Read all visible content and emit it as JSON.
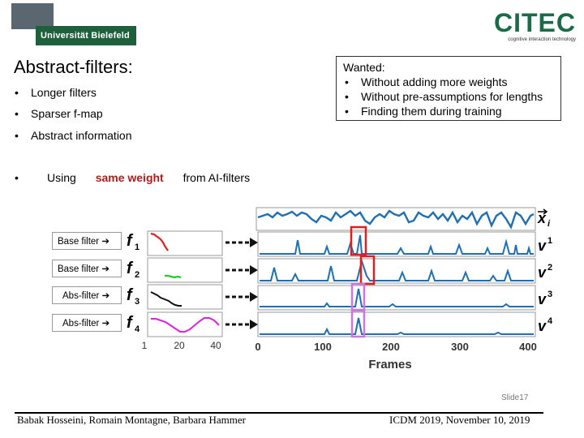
{
  "header": {
    "university_logo_text": "Universität Bielefeld",
    "citec_logo": "CITEC",
    "citec_subtitle": "cognitive interaction technology"
  },
  "slide": {
    "title": "Abstract-filters:",
    "bullets": [
      "Longer filters",
      "Sparser f-map",
      "Abstract information"
    ],
    "weight_bullet": {
      "prefix": "Using ",
      "highlight": "same weight",
      "suffix": " from AI-filters"
    },
    "wanted": {
      "heading": "Wanted:",
      "items": [
        "Without adding more weights",
        "Without pre-assumptions for lengths",
        "Finding them during training"
      ]
    }
  },
  "figure": {
    "filter_labels": [
      "Base filter",
      "Base filter",
      "Abs-filter",
      "Abs-filter"
    ],
    "arrow_glyph": "➔",
    "filter_names": [
      "f",
      "f",
      "f",
      "f"
    ],
    "filter_subscripts": [
      "1",
      "2",
      "3",
      "4"
    ],
    "filter_ticks": [
      "1",
      "20",
      "40"
    ],
    "signal_label": "x",
    "signal_subscript": "i",
    "map_labels": [
      "v",
      "v",
      "v",
      "v"
    ],
    "map_superscripts": [
      "1",
      "2",
      "3",
      "4"
    ],
    "frame_ticks": [
      "0",
      "100",
      "200",
      "300",
      "400"
    ],
    "frames_label": "Frames",
    "colors": {
      "signal": "#1f6fb5",
      "red": "#e02020",
      "green": "#22cc22",
      "black": "#111111",
      "magenta": "#dd22dd",
      "box_violet": "#cc77dd"
    }
  },
  "footer": {
    "slide_number": "Slide17",
    "authors": "Babak Hosseini, Romain Montagne, Barbara Hammer",
    "conference": "ICDM 2019, November 10, 2019"
  }
}
